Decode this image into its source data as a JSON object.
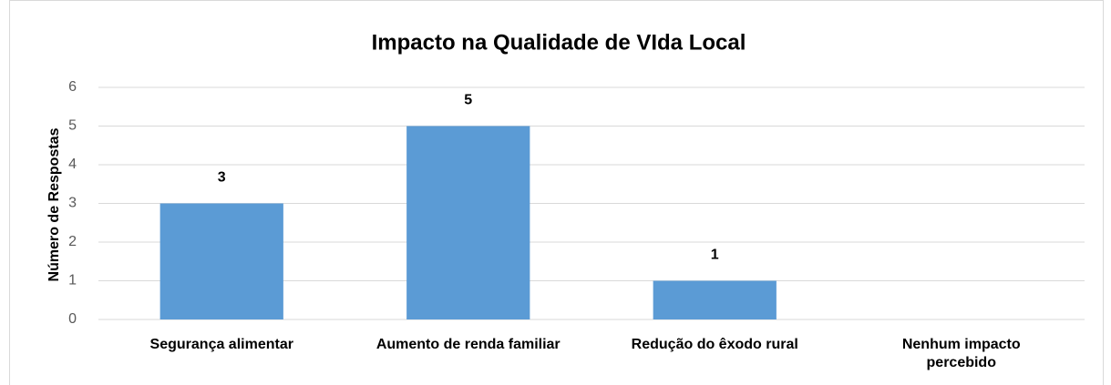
{
  "chart_data": {
    "type": "bar",
    "title": "Impacto na Qualidade de VIda Local",
    "ylabel": "Número de Respostas",
    "categories": [
      "Segurança alimentar",
      "Aumento de renda familiar",
      "Redução do êxodo rural",
      "Nenhum impacto\npercebido"
    ],
    "values": [
      3,
      5,
      1,
      0
    ],
    "value_labels": [
      "3",
      "5",
      "1",
      null
    ],
    "color": "#5b9bd5",
    "ylim": [
      0,
      6
    ],
    "yticks": [
      0,
      1,
      2,
      3,
      4,
      5,
      6
    ],
    "grid": true
  }
}
